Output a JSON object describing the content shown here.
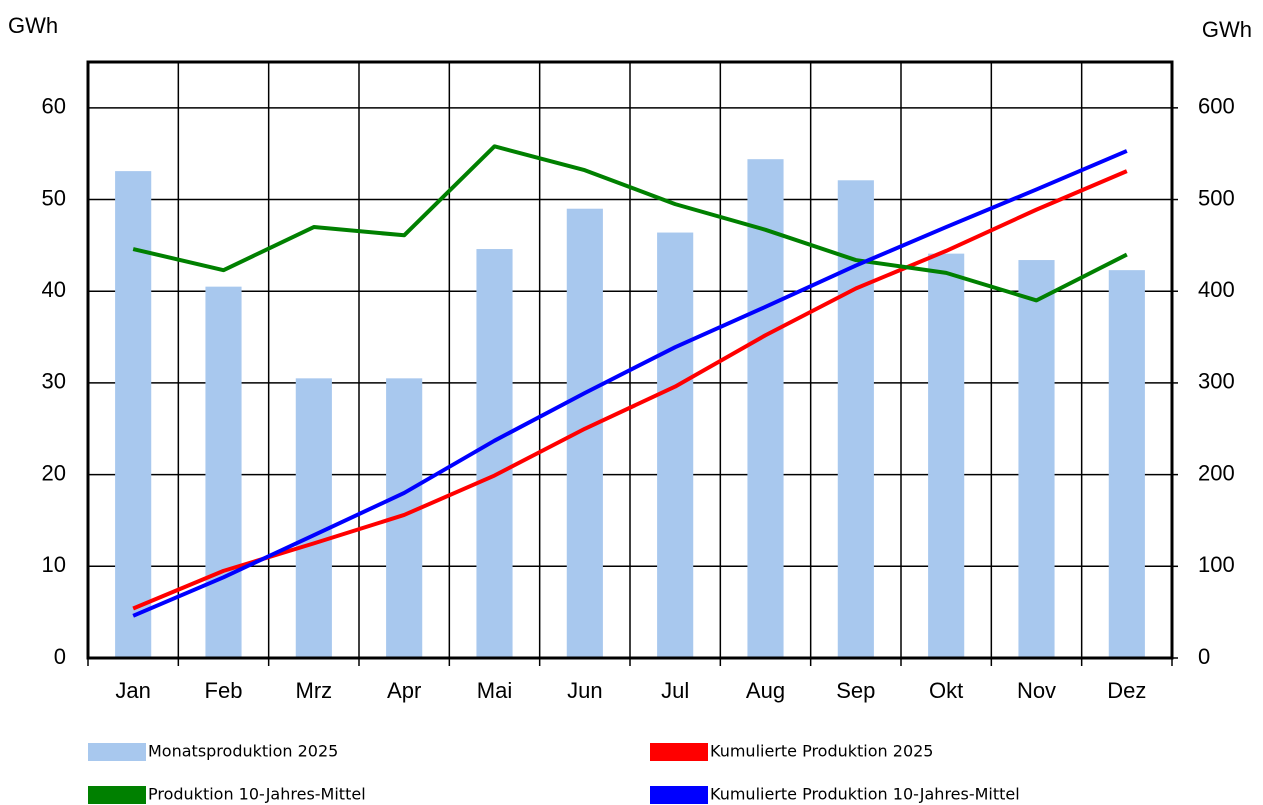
{
  "chart_data": {
    "type": "bar",
    "y_label": "GWh",
    "y2_label": "GWh",
    "categories": [
      "Jan",
      "Feb",
      "Mrz",
      "Apr",
      "Mai",
      "Jun",
      "Jul",
      "Aug",
      "Sep",
      "Okt",
      "Nov",
      "Dez"
    ],
    "series": [
      {
        "name": "Monatsproduktion 2025",
        "type": "bar",
        "color": "#a8c8ee",
        "values": [
          53.1,
          40.5,
          30.5,
          30.5,
          44.6,
          49.0,
          46.4,
          54.4,
          52.1,
          44.1,
          43.4,
          42.3
        ]
      },
      {
        "name": "Kumulierte Produktion 2025",
        "type": "line",
        "axis": "y2",
        "color": "#ff0000",
        "values": [
          54,
          95,
          125,
          156,
          199,
          250,
          296,
          352,
          403,
          444,
          489,
          531
        ]
      },
      {
        "name": "Produktion 10-Jahres-Mittel",
        "type": "line",
        "color": "#008000",
        "values": [
          44.6,
          42.3,
          47.0,
          46.1,
          55.8,
          53.2,
          49.5,
          46.7,
          43.4,
          42.0,
          39.0,
          44.0
        ]
      },
      {
        "name": "Kumulierte Produktion 10-Jahres-Mittel",
        "type": "line",
        "axis": "y2",
        "color": "#0000ff",
        "values": [
          46,
          88,
          134,
          180,
          237,
          289,
          339,
          383,
          428,
          470,
          511,
          553
        ]
      }
    ],
    "ylim": [
      0,
      65
    ],
    "yticks": [
      0,
      10,
      20,
      30,
      40,
      50,
      60
    ],
    "y2lim": [
      0,
      650
    ],
    "y2ticks": [
      0,
      100,
      200,
      300,
      400,
      500,
      600
    ],
    "grid": true
  }
}
